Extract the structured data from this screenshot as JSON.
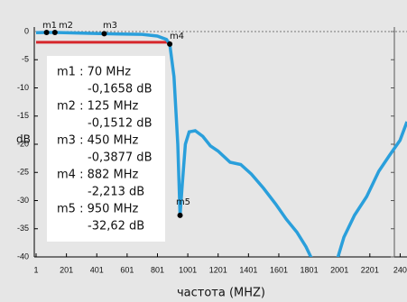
{
  "chart_data": {
    "type": "line",
    "x_label": "частота (MHZ)",
    "y_label": "dB",
    "xlim": [
      1,
      2446
    ],
    "ylim": [
      -40,
      0
    ],
    "xticks": [
      1,
      201,
      401,
      601,
      801,
      1001,
      1201,
      1401,
      1601,
      1801,
      2001,
      2201,
      {
        "value": 2401,
        "label": "240"
      }
    ],
    "yticks": [
      0,
      -5,
      -10,
      -15,
      -20,
      -25,
      -30,
      -35,
      -40
    ],
    "series": [
      {
        "color": "#2a9fdb",
        "x": [
          1,
          70,
          125,
          450,
          700,
          800,
          860,
          882,
          910,
          935,
          950,
          965,
          985,
          1010,
          1050,
          1100,
          1150,
          1200,
          1280,
          1350,
          1420,
          1500,
          1580,
          1650,
          1720,
          1780,
          1830,
          1880,
          1930,
          1980,
          2030,
          2100,
          2180,
          2260,
          2330,
          2400,
          2446
        ],
        "values": [
          -0.2,
          -0.1658,
          -0.1512,
          -0.3877,
          -0.5,
          -0.8,
          -1.4,
          -2.213,
          -8,
          -20,
          -32.62,
          -27,
          -20,
          -17.8,
          -17.6,
          -18.6,
          -20.3,
          -21.2,
          -23.2,
          -23.6,
          -25.3,
          -27.8,
          -30.6,
          -33.3,
          -35.6,
          -38.2,
          -41,
          -44,
          -44,
          -41,
          -36.5,
          -32.6,
          -29.3,
          -24.8,
          -22,
          -19.3,
          -16
        ]
      },
      {
        "color": "#d6262b",
        "x": [
          1,
          882
        ],
        "values": [
          -1.9,
          -1.9
        ]
      }
    ],
    "markers": [
      {
        "label": "m1",
        "x": 70,
        "y": -0.1658,
        "freq_label": "m1 : 70 MHz",
        "value_label": "-0,1658 dB"
      },
      {
        "label": "m2",
        "x": 125,
        "y": -0.1512,
        "freq_label": "m2 : 125 MHz",
        "value_label": "-0,1512 dB"
      },
      {
        "label": "m3",
        "x": 450,
        "y": -0.3877,
        "freq_label": "m3 : 450 MHz",
        "value_label": "-0,3877 dB"
      },
      {
        "label": "m4",
        "x": 882,
        "y": -2.213,
        "freq_label": "m4 : 882 MHz",
        "value_label": "-2,213 dB"
      },
      {
        "label": "m5",
        "x": 950,
        "y": -32.62,
        "freq_label": "m5 : 950 MHz",
        "value_label": "-32,62 dB"
      }
    ]
  }
}
